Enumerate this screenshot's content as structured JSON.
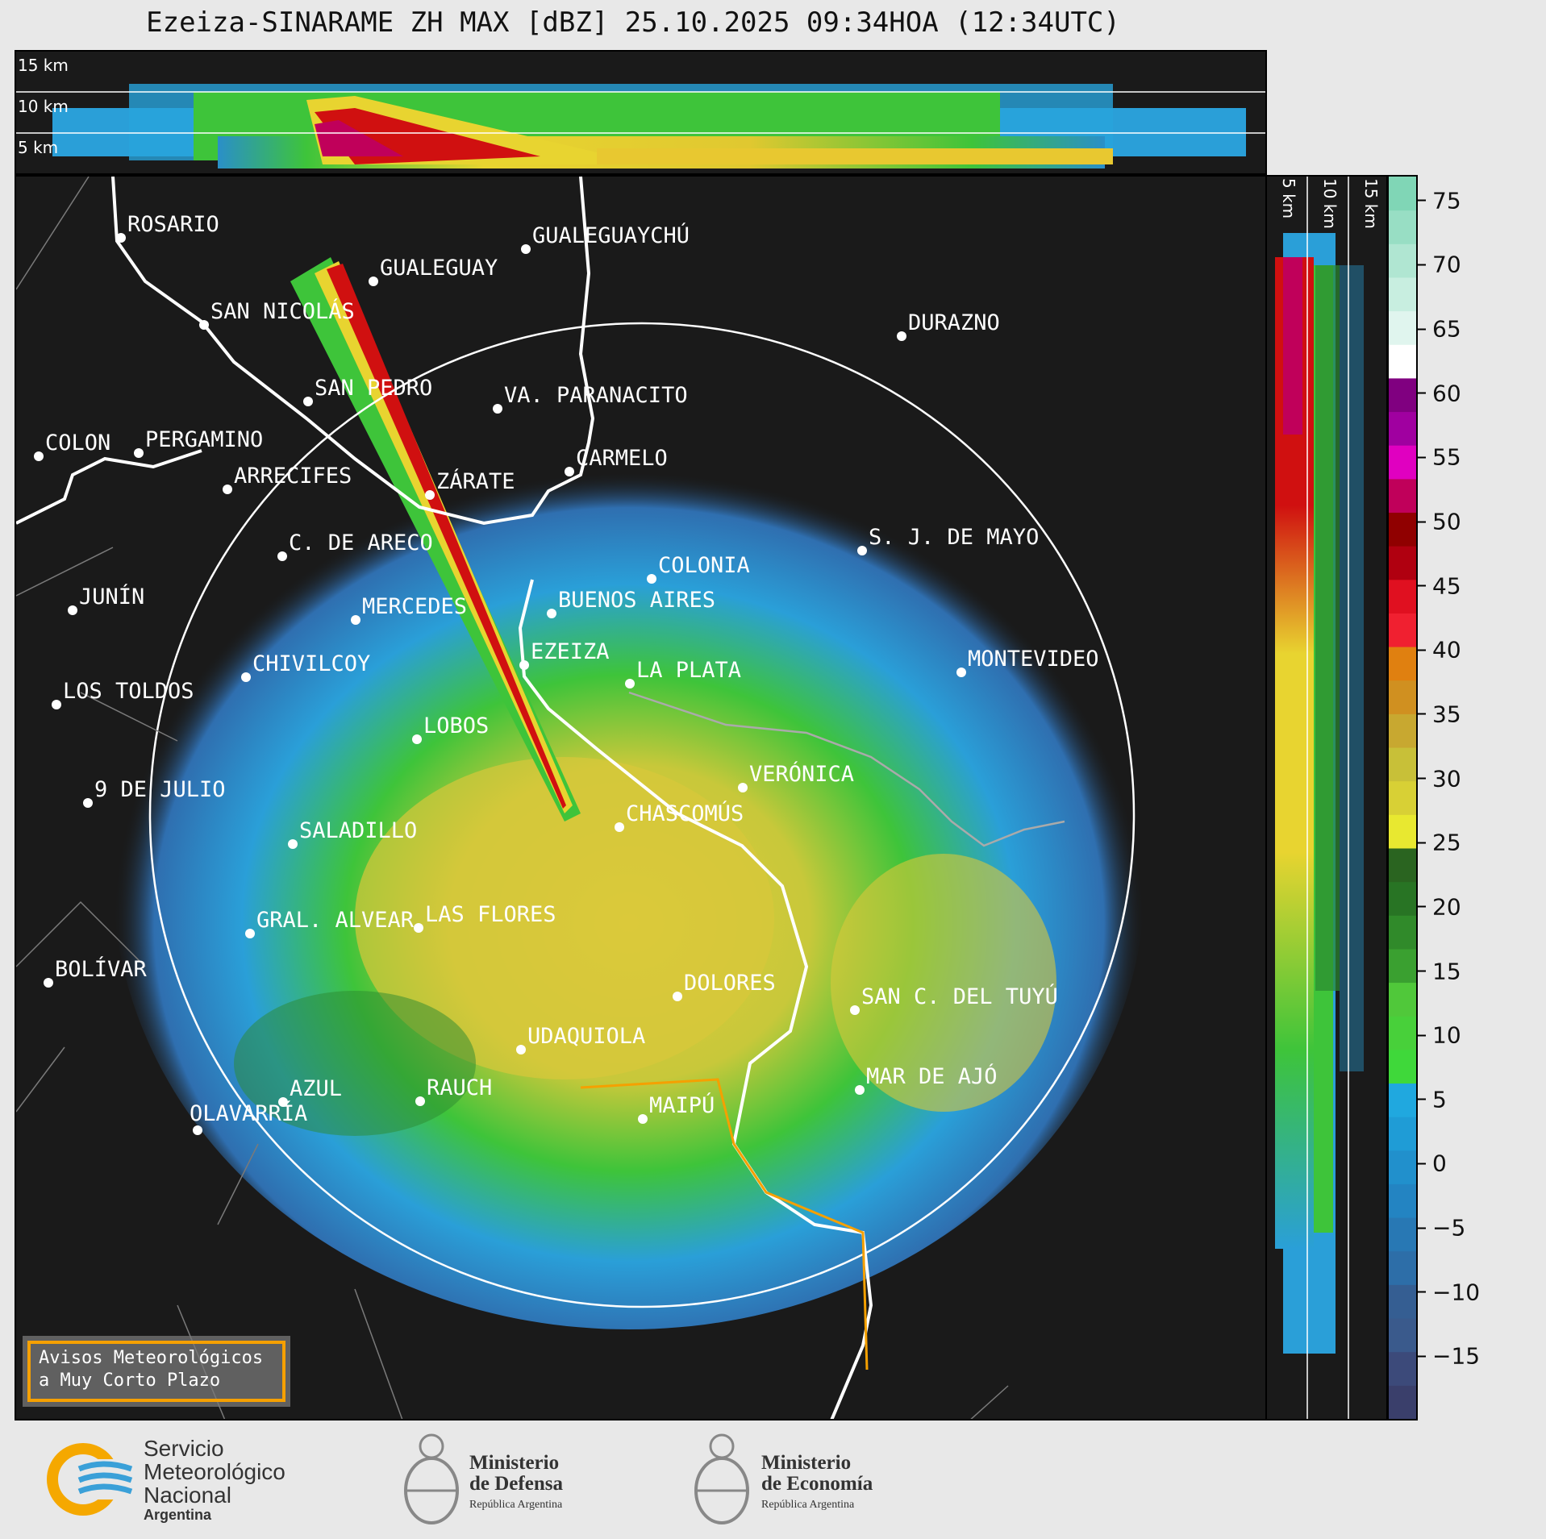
{
  "title": "Ezeiza-SINARAME ZH MAX [dBZ] 25.10.2025 09:34HOA (12:34UTC)",
  "top_profile": {
    "km_labels": [
      "15 km",
      "10 km",
      "5 km"
    ]
  },
  "side_profile": {
    "km_labels": [
      "5 km",
      "10 km",
      "15 km"
    ]
  },
  "cities": [
    {
      "name": "ROSARIO"
    },
    {
      "name": "GUALEGUAYCHÚ"
    },
    {
      "name": "GUALEGUAY"
    },
    {
      "name": "SAN NICOLÁS"
    },
    {
      "name": "DURAZNO"
    },
    {
      "name": "SAN PEDRO"
    },
    {
      "name": "VA. PARANACITO"
    },
    {
      "name": "COLON"
    },
    {
      "name": "PERGAMINO"
    },
    {
      "name": "CARMELO"
    },
    {
      "name": "ARRECIFES"
    },
    {
      "name": "ZÁRATE"
    },
    {
      "name": "C. DE ARECO"
    },
    {
      "name": "S. J. DE MAYO"
    },
    {
      "name": "COLONIA"
    },
    {
      "name": "JUNÍN"
    },
    {
      "name": "BUENOS AIRES"
    },
    {
      "name": "MERCEDES"
    },
    {
      "name": "EZEIZA"
    },
    {
      "name": "MONTEVIDEO"
    },
    {
      "name": "CHIVILCOY"
    },
    {
      "name": "LA PLATA"
    },
    {
      "name": "LOS TOLDOS"
    },
    {
      "name": "LOBOS"
    },
    {
      "name": "VERÓNICA"
    },
    {
      "name": "9 DE JULIO"
    },
    {
      "name": "CHASCOMÚS"
    },
    {
      "name": "SALADILLO"
    },
    {
      "name": "GRAL. ALVEAR"
    },
    {
      "name": "LAS FLORES"
    },
    {
      "name": "BOLÍVAR"
    },
    {
      "name": "DOLORES"
    },
    {
      "name": "SAN C. DEL TUYÚ"
    },
    {
      "name": "UDAQUIOLA"
    },
    {
      "name": "MAR DE AJÓ"
    },
    {
      "name": "AZUL"
    },
    {
      "name": "RAUCH"
    },
    {
      "name": "OLAVARRÍA"
    },
    {
      "name": "MAIPÚ"
    }
  ],
  "colorbar": {
    "ticks": [
      "75",
      "70",
      "65",
      "60",
      "55",
      "50",
      "45",
      "40",
      "35",
      "30",
      "25",
      "20",
      "15",
      "10",
      "5",
      "0",
      "−5",
      "−10",
      "−15"
    ],
    "min": -20,
    "max": 77
  },
  "legend": {
    "line1": "Avisos Meteorológicos",
    "line2": "a Muy Corto Plazo",
    "border_color": "#f5a000"
  },
  "footer": {
    "smn": [
      "Servicio",
      "Meteorológico",
      "Nacional",
      "Argentina"
    ],
    "defensa": [
      "Ministerio",
      "de Defensa",
      "República Argentina"
    ],
    "economia": [
      "Ministerio",
      "de Economía",
      "República Argentina"
    ]
  }
}
